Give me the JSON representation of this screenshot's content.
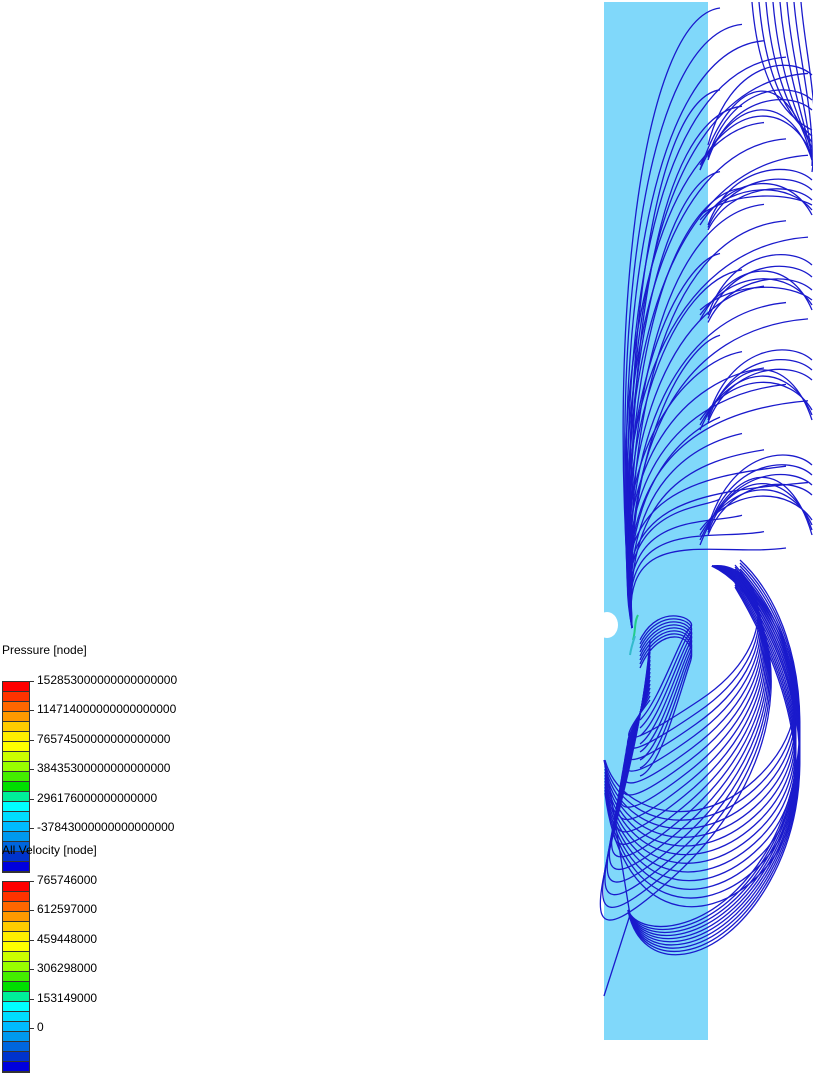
{
  "legends": [
    {
      "title": "Pressure [node]",
      "labels": [
        "152853000000000000000",
        "114714000000000000000",
        "76574500000000000000",
        "38435300000000000000",
        "296176000000000000",
        "-37843000000000000000"
      ]
    },
    {
      "title": "All Velocity [node]",
      "labels": [
        "765746000",
        "612597000",
        "459448000",
        "306298000",
        "153149000",
        "0"
      ]
    }
  ],
  "colormap": [
    "#ff0000",
    "#ff3300",
    "#ff6600",
    "#ff9900",
    "#ffcc00",
    "#ffee00",
    "#ffff00",
    "#ccff00",
    "#99ff00",
    "#44ee00",
    "#00dd00",
    "#00ee99",
    "#00ffff",
    "#00ddff",
    "#00bbff",
    "#0099ee",
    "#0066dd",
    "#0033cc",
    "#0000dd"
  ],
  "colors": {
    "slab": "#80d8fa",
    "streamline": "#1a1acc"
  }
}
